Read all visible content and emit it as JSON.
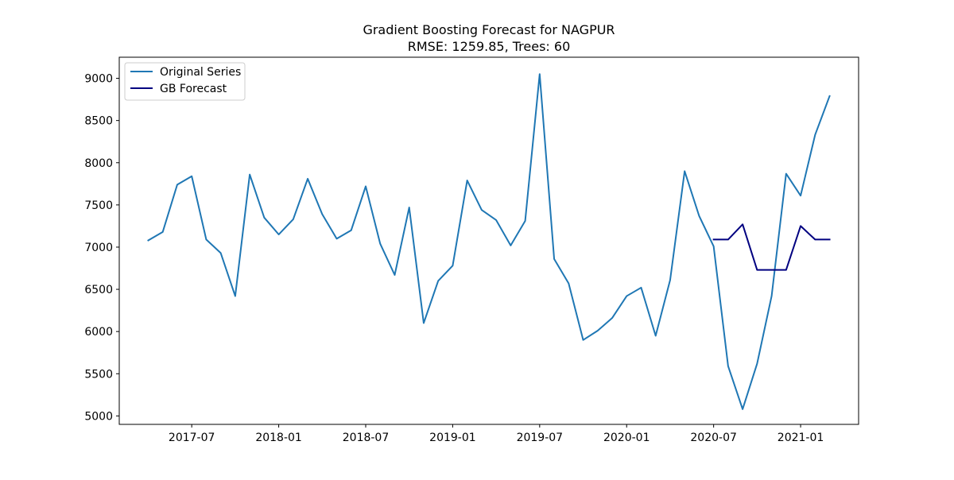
{
  "chart_data": {
    "type": "line",
    "title_line1": "Gradient Boosting Forecast for NAGPUR",
    "title_line2": "RMSE: 1259.85, Trees: 60",
    "xlabel": "",
    "ylabel": "",
    "x_ticks": [
      "2017-07",
      "2018-01",
      "2018-07",
      "2019-01",
      "2019-07",
      "2020-01",
      "2020-07",
      "2021-01"
    ],
    "y_ticks": [
      5000,
      5500,
      6000,
      6500,
      7000,
      7500,
      8000,
      8500,
      9000
    ],
    "ylim": [
      4900,
      9250
    ],
    "xlim": [
      "2017-02",
      "2021-05"
    ],
    "grid": false,
    "legend_position": "upper left",
    "series": [
      {
        "name": "Original Series",
        "color": "#1f77b4",
        "x": [
          "2017-04",
          "2017-05",
          "2017-06",
          "2017-07",
          "2017-08",
          "2017-09",
          "2017-10",
          "2017-11",
          "2017-12",
          "2018-01",
          "2018-02",
          "2018-03",
          "2018-04",
          "2018-05",
          "2018-06",
          "2018-07",
          "2018-08",
          "2018-09",
          "2018-10",
          "2018-11",
          "2018-12",
          "2019-01",
          "2019-02",
          "2019-03",
          "2019-04",
          "2019-05",
          "2019-06",
          "2019-07",
          "2019-08",
          "2019-09",
          "2019-10",
          "2019-11",
          "2019-12",
          "2020-01",
          "2020-02",
          "2020-03",
          "2020-04",
          "2020-05",
          "2020-06",
          "2020-07",
          "2020-08",
          "2020-09",
          "2020-10",
          "2020-11",
          "2020-12",
          "2021-01",
          "2021-02",
          "2021-03"
        ],
        "values": [
          7080,
          7180,
          7740,
          7840,
          7090,
          6930,
          6420,
          7860,
          7350,
          7150,
          7330,
          7810,
          7390,
          7100,
          7200,
          7720,
          7040,
          6670,
          7470,
          6100,
          6600,
          6780,
          7790,
          7440,
          7320,
          7020,
          7310,
          9050,
          6860,
          6570,
          5900,
          6010,
          6160,
          6420,
          6520,
          5950,
          6610,
          7900,
          7370,
          7010,
          5590,
          5080,
          5620,
          6420,
          7870,
          7610,
          8330,
          8790
        ]
      },
      {
        "name": "GB Forecast",
        "color": "#000080",
        "x": [
          "2020-07",
          "2020-08",
          "2020-09",
          "2020-10",
          "2020-11",
          "2020-12",
          "2021-01",
          "2021-02",
          "2021-03"
        ],
        "values": [
          7090,
          7090,
          7270,
          6730,
          6730,
          6730,
          7250,
          7090,
          7090
        ]
      }
    ]
  }
}
